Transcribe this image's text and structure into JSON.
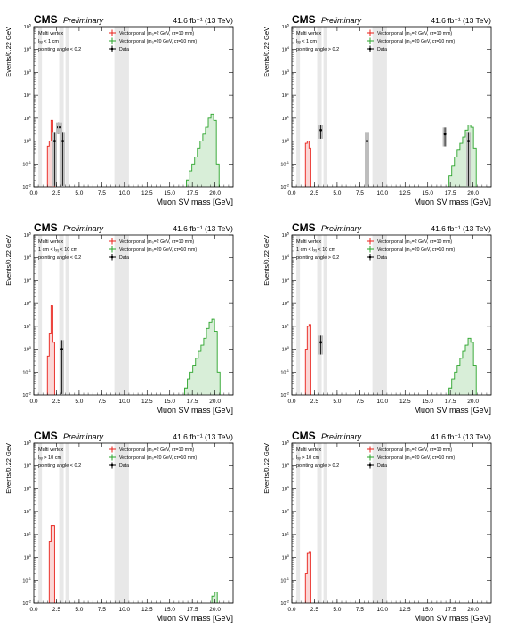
{
  "chart_data": [
    {
      "type": "histogram",
      "experiment": "CMS",
      "status": "Preliminary",
      "lumi": "41.6 fb⁻¹ (13 TeV)",
      "xlabel": "Muon SV mass [GeV]",
      "ylabel": "Events/0.22 GeV",
      "xlim": [
        0,
        22
      ],
      "ylim": [
        0.01,
        100000
      ],
      "yscale": "log",
      "legend": {
        "placement": "top-right",
        "entries": [
          {
            "name": "Vector portal (m₀=2 GeV, cτ=10 mm)",
            "color": "#e8211a"
          },
          {
            "name": "Vector portal (m₀=20 GeV, cτ=10 mm)",
            "color": "#29a329"
          },
          {
            "name": "Data",
            "color": "#000000"
          }
        ]
      },
      "category": [
        "Multi vertex",
        "lₓᵧ < 1 cm",
        "pointing angle < 0.2"
      ],
      "vetoed_mass_bands": [
        [
          0.5,
          0.9
        ],
        [
          2.8,
          3.3
        ],
        [
          3.5,
          3.9
        ],
        [
          8.9,
          10.5
        ]
      ],
      "signal_2GeV": {
        "x": [
          1.6,
          1.8,
          2.0,
          2.2
        ],
        "values": [
          0.6,
          1.0,
          8.0,
          1.2
        ]
      },
      "signal_20GeV": {
        "x": [
          17.0,
          17.3,
          17.6,
          17.9,
          18.2,
          18.5,
          18.8,
          19.1,
          19.4,
          19.7,
          20.0,
          20.3
        ],
        "values": [
          0.02,
          0.05,
          0.1,
          0.2,
          0.5,
          1.0,
          2.0,
          4.0,
          10.0,
          15.0,
          8.0,
          0.1
        ]
      },
      "data": {
        "x": [
          2.3,
          2.7,
          2.9,
          3.2
        ],
        "values": [
          1,
          4,
          4,
          1
        ]
      }
    },
    {
      "type": "histogram",
      "experiment": "CMS",
      "status": "Preliminary",
      "lumi": "41.6 fb⁻¹ (13 TeV)",
      "xlabel": "Muon SV mass [GeV]",
      "ylabel": "Events/0.22 GeV",
      "xlim": [
        0,
        22
      ],
      "ylim": [
        0.01,
        100000
      ],
      "yscale": "log",
      "legend": {
        "placement": "top-right",
        "entries": [
          {
            "name": "Vector portal (m₀=2 GeV, cτ=10 mm)",
            "color": "#e8211a"
          },
          {
            "name": "Vector portal (m₀=20 GeV, cτ=10 mm)",
            "color": "#29a329"
          },
          {
            "name": "Data",
            "color": "#000000"
          }
        ]
      },
      "category": [
        "Multi vertex",
        "lₓᵧ < 1 cm",
        "pointing angle > 0.2"
      ],
      "vetoed_mass_bands": [
        [
          0.5,
          0.9
        ],
        [
          2.8,
          3.3
        ],
        [
          3.5,
          3.9
        ],
        [
          8.9,
          10.5
        ]
      ],
      "signal_2GeV": {
        "x": [
          1.6,
          1.8,
          2.0
        ],
        "values": [
          0.8,
          1.0,
          0.5
        ]
      },
      "signal_20GeV": {
        "x": [
          17.5,
          17.8,
          18.1,
          18.4,
          18.7,
          19.0,
          19.3,
          19.6,
          19.9,
          20.2
        ],
        "values": [
          0.03,
          0.08,
          0.2,
          0.4,
          0.8,
          1.5,
          3.0,
          5.0,
          4.0,
          0.5
        ]
      },
      "data": {
        "x": [
          3.2,
          8.3,
          16.9,
          19.5
        ],
        "values": [
          3,
          1,
          2,
          1
        ]
      }
    },
    {
      "type": "histogram",
      "experiment": "CMS",
      "status": "Preliminary",
      "lumi": "41.6 fb⁻¹ (13 TeV)",
      "xlabel": "Muon SV mass [GeV]",
      "ylabel": "Events/0.22 GeV",
      "xlim": [
        0,
        22
      ],
      "ylim": [
        0.01,
        100000
      ],
      "yscale": "log",
      "legend": {
        "placement": "top-right",
        "entries": [
          {
            "name": "Vector portal (m₀=2 GeV, cτ=10 mm)",
            "color": "#e8211a"
          },
          {
            "name": "Vector portal (m₀=20 GeV, cτ=10 mm)",
            "color": "#29a329"
          },
          {
            "name": "Data",
            "color": "#000000"
          }
        ]
      },
      "category": [
        "Multi vertex",
        "1 cm < lₓᵧ < 10 cm",
        "pointing angle < 0.2"
      ],
      "vetoed_mass_bands": [
        [
          0.5,
          0.9
        ],
        [
          2.8,
          3.3
        ],
        [
          3.5,
          3.9
        ],
        [
          8.9,
          10.5
        ]
      ],
      "signal_2GeV": {
        "x": [
          1.6,
          1.8,
          2.0,
          2.2
        ],
        "values": [
          0.5,
          5.0,
          80.0,
          2.0
        ]
      },
      "signal_20GeV": {
        "x": [
          16.8,
          17.1,
          17.4,
          17.7,
          18.0,
          18.3,
          18.6,
          18.9,
          19.2,
          19.5,
          19.8,
          20.1,
          20.4
        ],
        "values": [
          0.02,
          0.05,
          0.1,
          0.2,
          0.4,
          0.8,
          1.5,
          3.0,
          8.0,
          15.0,
          20.0,
          6.0,
          0.1
        ]
      },
      "data": {
        "x": [
          3.1
        ],
        "values": [
          1
        ]
      }
    },
    {
      "type": "histogram",
      "experiment": "CMS",
      "status": "Preliminary",
      "lumi": "41.6 fb⁻¹ (13 TeV)",
      "xlabel": "Muon SV mass [GeV]",
      "ylabel": "Events/0.22 GeV",
      "xlim": [
        0,
        22
      ],
      "ylim": [
        0.01,
        100000
      ],
      "yscale": "log",
      "legend": {
        "placement": "top-right",
        "entries": [
          {
            "name": "Vector portal (m₀=2 GeV, cτ=10 mm)",
            "color": "#e8211a"
          },
          {
            "name": "Vector portal (m₀=20 GeV, cτ=10 mm)",
            "color": "#29a329"
          },
          {
            "name": "Data",
            "color": "#000000"
          }
        ]
      },
      "category": [
        "Multi vertex",
        "1 cm < lₓᵧ < 10 cm",
        "pointing angle > 0.2"
      ],
      "vetoed_mass_bands": [
        [
          0.5,
          0.9
        ],
        [
          2.8,
          3.3
        ],
        [
          3.5,
          3.9
        ],
        [
          8.9,
          10.5
        ]
      ],
      "signal_2GeV": {
        "x": [
          1.6,
          1.8,
          2.0
        ],
        "values": [
          1.0,
          10.0,
          12.0
        ]
      },
      "signal_20GeV": {
        "x": [
          17.5,
          17.8,
          18.1,
          18.4,
          18.7,
          19.0,
          19.3,
          19.6,
          19.9,
          20.2
        ],
        "values": [
          0.02,
          0.05,
          0.1,
          0.2,
          0.4,
          0.8,
          1.5,
          3.0,
          2.0,
          0.2
        ]
      },
      "data": {
        "x": [
          3.2
        ],
        "values": [
          2
        ]
      }
    },
    {
      "type": "histogram",
      "experiment": "CMS",
      "status": "Preliminary",
      "lumi": "41.6 fb⁻¹ (13 TeV)",
      "xlabel": "Muon SV mass [GeV]",
      "ylabel": "Events/0.22 GeV",
      "xlim": [
        0,
        22
      ],
      "ylim": [
        0.01,
        100000
      ],
      "yscale": "log",
      "legend": {
        "placement": "top-right",
        "entries": [
          {
            "name": "Vector portal (m₀=2 GeV, cτ=10 mm)",
            "color": "#e8211a"
          },
          {
            "name": "Vector portal (m₀=20 GeV, cτ=10 mm)",
            "color": "#29a329"
          },
          {
            "name": "Data",
            "color": "#000000"
          }
        ]
      },
      "category": [
        "Multi vertex",
        "lₓᵧ > 10 cm",
        "pointing angle < 0.2"
      ],
      "vetoed_mass_bands": [
        [
          0.5,
          0.9
        ],
        [
          2.8,
          3.3
        ],
        [
          3.5,
          3.9
        ],
        [
          8.9,
          10.5
        ]
      ],
      "signal_2GeV": {
        "x": [
          1.8,
          2.0,
          2.2
        ],
        "values": [
          5.0,
          25.0,
          25.0
        ]
      },
      "signal_20GeV": {
        "x": [
          19.8,
          20.1
        ],
        "values": [
          0.02,
          0.03
        ]
      },
      "data": {
        "x": [],
        "values": []
      }
    },
    {
      "type": "histogram",
      "experiment": "CMS",
      "status": "Preliminary",
      "lumi": "41.6 fb⁻¹ (13 TeV)",
      "xlabel": "Muon SV mass [GeV]",
      "ylabel": "Events/0.22 GeV",
      "xlim": [
        0,
        22
      ],
      "ylim": [
        0.01,
        100000
      ],
      "yscale": "log",
      "legend": {
        "placement": "top-right",
        "entries": [
          {
            "name": "Vector portal (m₀=2 GeV, cτ=10 mm)",
            "color": "#e8211a"
          },
          {
            "name": "Vector portal (m₀=20 GeV, cτ=10 mm)",
            "color": "#29a329"
          },
          {
            "name": "Data",
            "color": "#000000"
          }
        ]
      },
      "category": [
        "Multi vertex",
        "lₓᵧ > 10 cm",
        "pointing angle > 0.2"
      ],
      "vetoed_mass_bands": [
        [
          0.5,
          0.9
        ],
        [
          2.8,
          3.3
        ],
        [
          3.5,
          3.9
        ],
        [
          8.9,
          10.5
        ]
      ],
      "signal_2GeV": {
        "x": [
          1.6,
          1.8,
          2.0
        ],
        "values": [
          0.2,
          1.5,
          1.8
        ]
      },
      "signal_20GeV": {
        "x": [],
        "values": []
      },
      "data": {
        "x": [],
        "values": []
      }
    }
  ],
  "axis": {
    "xticks": [
      "0.0",
      "2.5",
      "5.0",
      "7.5",
      "10.0",
      "12.5",
      "15.0",
      "17.5",
      "20.0"
    ],
    "xtick_values": [
      0,
      2.5,
      5,
      7.5,
      10,
      12.5,
      15,
      17.5,
      20
    ],
    "yticks_exp": [
      -2,
      -1,
      0,
      1,
      2,
      3,
      4,
      5
    ]
  }
}
